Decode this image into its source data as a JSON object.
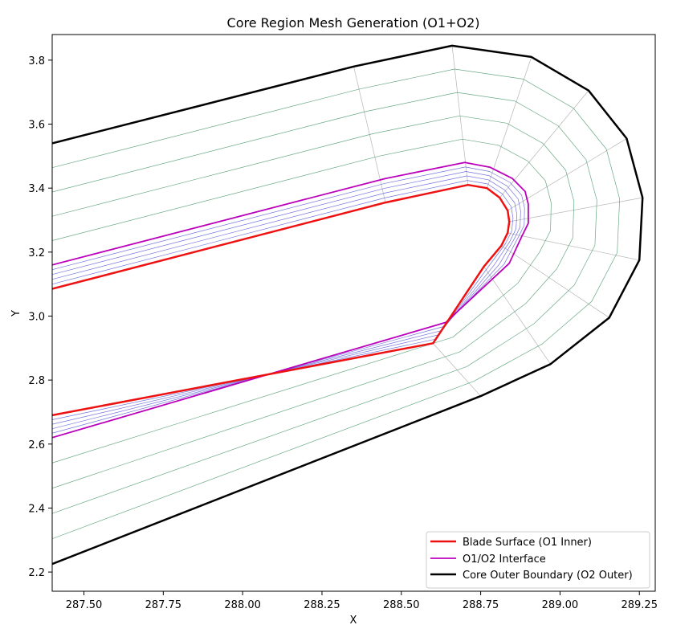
{
  "chart_data": {
    "type": "line",
    "title": "Core Region Mesh Generation (O1+O2)",
    "xlabel": "X",
    "ylabel": "Y",
    "xlim": [
      287.4,
      289.3
    ],
    "ylim": [
      2.14,
      3.88
    ],
    "xticks": [
      287.5,
      287.75,
      288.0,
      288.25,
      288.5,
      288.75,
      289.0,
      289.25
    ],
    "xtick_labels": [
      "287.50",
      "287.75",
      "288.00",
      "288.25",
      "288.50",
      "288.75",
      "289.00",
      "289.25"
    ],
    "yticks": [
      2.2,
      2.4,
      2.6,
      2.8,
      3.0,
      3.2,
      3.4,
      3.6,
      3.8
    ],
    "ytick_labels": [
      "2.2",
      "2.4",
      "2.6",
      "2.8",
      "3.0",
      "3.2",
      "3.4",
      "3.6",
      "3.8"
    ],
    "grid": false,
    "legend_position": "lower-right",
    "series": [
      {
        "name": "Blade Surface (O1 Inner)",
        "color": "#ee1111",
        "x": [
          287.4,
          288.45,
          288.71,
          288.77,
          288.81,
          288.835,
          288.84,
          288.835,
          288.815,
          288.76,
          288.6,
          287.4
        ],
        "y": [
          3.085,
          3.355,
          3.41,
          3.4,
          3.37,
          3.33,
          3.295,
          3.26,
          3.22,
          3.155,
          2.915,
          2.69
        ]
      },
      {
        "name": "O1/O2 Interface",
        "color": "#bb00bb",
        "x": [
          287.4,
          288.45,
          288.7,
          288.78,
          288.85,
          288.89,
          288.9,
          288.9,
          288.88,
          288.84,
          288.64,
          287.4
        ],
        "y": [
          3.16,
          3.43,
          3.48,
          3.465,
          3.43,
          3.39,
          3.35,
          3.29,
          3.25,
          3.165,
          2.98,
          2.62
        ]
      },
      {
        "name": "Core Outer Boundary (O2 Outer)",
        "color": "#000000",
        "x": [
          287.4,
          288.35,
          288.66,
          288.91,
          289.09,
          289.21,
          289.26,
          289.25,
          289.155,
          288.97,
          288.75,
          287.4
        ],
        "y": [
          3.54,
          3.78,
          3.845,
          3.81,
          3.705,
          3.555,
          3.37,
          3.175,
          2.995,
          2.85,
          2.75,
          2.225
        ]
      }
    ],
    "mesh": {
      "interface_lines_color": "#5a5adb",
      "o2_lines_color": "#4f9a6f",
      "radial_lines_color": "#b5b5b5",
      "o1_layers": 4,
      "o2_layers": 4
    }
  }
}
